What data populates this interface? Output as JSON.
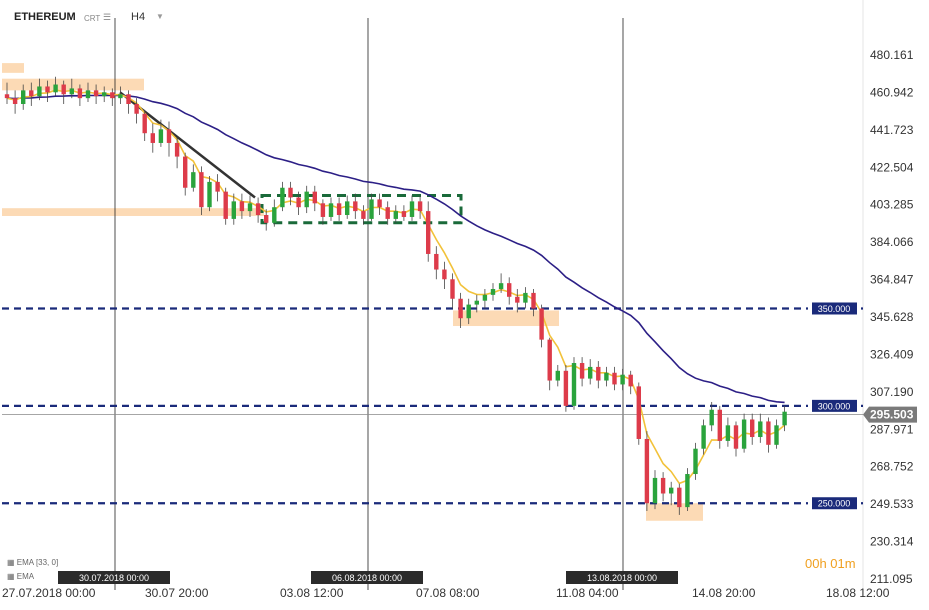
{
  "header": {
    "symbol": "ETHEREUM",
    "chart_type": "CRT",
    "timeframe": "H4"
  },
  "legend": [
    {
      "label": "EMA",
      "params": "[33, 0]"
    },
    {
      "label": "EMA",
      "params": ""
    }
  ],
  "timer": "00h 01m",
  "colors": {
    "bull": "#2aa33c",
    "bear": "#dd3b4a",
    "ema_fast": "#f2c23a",
    "ema_slow": "#2c1f86",
    "level": "#1a2a7a",
    "zone": "#fbd3a8",
    "box": "#1a6a3a",
    "trend": "#333333",
    "price_tag": "#7a7a7a"
  },
  "chart_data": {
    "type": "candlestick",
    "title": "",
    "xlabel": "",
    "ylabel": "",
    "ylim": [
      211.095,
      480.161
    ],
    "y_ticks": [
      480.161,
      460.942,
      441.723,
      422.504,
      403.285,
      384.066,
      364.847,
      345.628,
      326.409,
      307.19,
      287.971,
      268.752,
      249.533,
      230.314,
      211.095
    ],
    "y_tick_labels": [
      "480.161",
      "460.942",
      "441.723",
      "422.504",
      "403.285",
      "384.066",
      "364.847",
      "345.628",
      "326.409",
      "307.190",
      "287.971",
      "268.752",
      "249.533",
      "230.314",
      "211.095"
    ],
    "x_tick_labels": [
      "27.07.2018  00:00",
      "30.07  20:00",
      "03.08  12:00",
      "07.08  08:00",
      "11.08  04:00",
      "14.08  20:00",
      "18.08  12:00"
    ],
    "vertical_markers": [
      "30.07.2018 00:00",
      "06.08.2018 00:00",
      "13.08.2018 00:00"
    ],
    "levels": [
      {
        "label": "350.000",
        "value": 350
      },
      {
        "label": "300.000",
        "value": 300
      },
      {
        "label": "250.000",
        "value": 250
      }
    ],
    "current_price": {
      "label": "295.503",
      "value": 295.503
    },
    "candles": [
      [
        460,
        458,
        466,
        455
      ],
      [
        458,
        455,
        462,
        450
      ],
      [
        455,
        462,
        465,
        452
      ],
      [
        462,
        459,
        466,
        454
      ],
      [
        459,
        464,
        468,
        457
      ],
      [
        464,
        461,
        467,
        456
      ],
      [
        461,
        465,
        469,
        459
      ],
      [
        465,
        460,
        467,
        455
      ],
      [
        460,
        463,
        468,
        458
      ],
      [
        463,
        458,
        465,
        454
      ],
      [
        458,
        462,
        466,
        456
      ],
      [
        462,
        459,
        465,
        455
      ],
      [
        459,
        461,
        464,
        456
      ],
      [
        461,
        458,
        463,
        454
      ],
      [
        458,
        460,
        464,
        455
      ],
      [
        460,
        455,
        462,
        450
      ],
      [
        455,
        450,
        458,
        445
      ],
      [
        450,
        440,
        452,
        436
      ],
      [
        440,
        435,
        445,
        430
      ],
      [
        435,
        442,
        447,
        433
      ],
      [
        442,
        435,
        446,
        428
      ],
      [
        435,
        428,
        438,
        422
      ],
      [
        428,
        412,
        430,
        408
      ],
      [
        412,
        420,
        424,
        410
      ],
      [
        420,
        402,
        423,
        398
      ],
      [
        402,
        415,
        418,
        400
      ],
      [
        415,
        410,
        419,
        405
      ],
      [
        410,
        396,
        412,
        393
      ],
      [
        396,
        405,
        409,
        393
      ],
      [
        405,
        400,
        409,
        396
      ],
      [
        400,
        404,
        408,
        397
      ],
      [
        404,
        398,
        407,
        394
      ],
      [
        398,
        394,
        401,
        390
      ],
      [
        394,
        402,
        406,
        392
      ],
      [
        402,
        412,
        415,
        400
      ],
      [
        412,
        407,
        415,
        403
      ],
      [
        407,
        402,
        410,
        398
      ],
      [
        402,
        410,
        413,
        399
      ],
      [
        410,
        404,
        413,
        400
      ],
      [
        404,
        397,
        406,
        393
      ],
      [
        397,
        404,
        407,
        395
      ],
      [
        404,
        398,
        407,
        395
      ],
      [
        398,
        405,
        408,
        396
      ],
      [
        405,
        400,
        409,
        396
      ],
      [
        400,
        396,
        403,
        393
      ],
      [
        396,
        406,
        409,
        395
      ],
      [
        406,
        402,
        409,
        398
      ],
      [
        402,
        396,
        405,
        393
      ],
      [
        396,
        400,
        403,
        394
      ],
      [
        400,
        397,
        403,
        395
      ],
      [
        397,
        405,
        408,
        395
      ],
      [
        405,
        400,
        408,
        396
      ],
      [
        400,
        378,
        405,
        374
      ],
      [
        378,
        370,
        382,
        365
      ],
      [
        370,
        365,
        374,
        360
      ],
      [
        365,
        355,
        368,
        350
      ],
      [
        355,
        345,
        358,
        340
      ],
      [
        345,
        352,
        355,
        342
      ],
      [
        352,
        354,
        357,
        348
      ],
      [
        354,
        357,
        360,
        350
      ],
      [
        357,
        360,
        363,
        354
      ],
      [
        360,
        363,
        368,
        358
      ],
      [
        363,
        356,
        366,
        352
      ],
      [
        356,
        353,
        360,
        348
      ],
      [
        353,
        358,
        361,
        350
      ],
      [
        358,
        350,
        360,
        346
      ],
      [
        350,
        334,
        352,
        330
      ],
      [
        334,
        313,
        335,
        308
      ],
      [
        313,
        318,
        321,
        310
      ],
      [
        318,
        300,
        321,
        297
      ],
      [
        300,
        322,
        325,
        298
      ],
      [
        322,
        314,
        325,
        310
      ],
      [
        314,
        320,
        324,
        311
      ],
      [
        320,
        313,
        323,
        309
      ],
      [
        313,
        317,
        320,
        310
      ],
      [
        317,
        311,
        320,
        308
      ],
      [
        311,
        316,
        319,
        308
      ],
      [
        316,
        310,
        318,
        306
      ],
      [
        310,
        283,
        312,
        280
      ],
      [
        283,
        250,
        287,
        246
      ],
      [
        250,
        263,
        267,
        247
      ],
      [
        263,
        255,
        266,
        251
      ],
      [
        255,
        258,
        261,
        249
      ],
      [
        258,
        248,
        260,
        244
      ],
      [
        248,
        265,
        268,
        246
      ],
      [
        265,
        278,
        281,
        262
      ],
      [
        278,
        290,
        293,
        275
      ],
      [
        290,
        298,
        302,
        287
      ],
      [
        298,
        282,
        300,
        278
      ],
      [
        282,
        290,
        294,
        279
      ],
      [
        290,
        278,
        292,
        274
      ],
      [
        278,
        293,
        296,
        276
      ],
      [
        293,
        284,
        296,
        280
      ],
      [
        284,
        292,
        296,
        281
      ],
      [
        292,
        280,
        294,
        276
      ],
      [
        280,
        290,
        293,
        278
      ],
      [
        290,
        297,
        300,
        287
      ]
    ]
  }
}
